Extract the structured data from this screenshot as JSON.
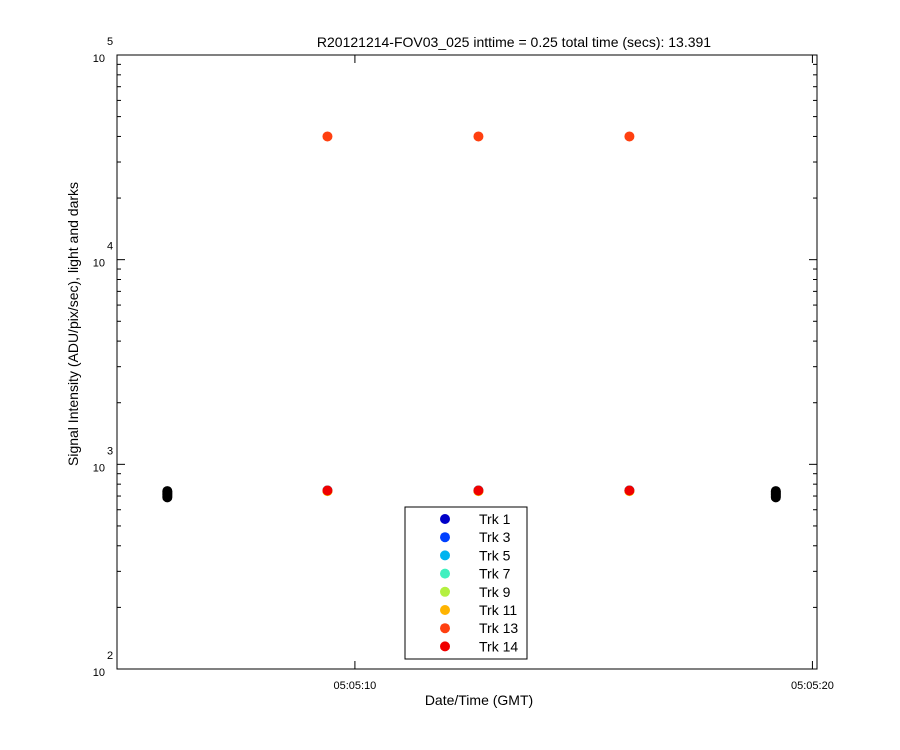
{
  "chart_data": {
    "type": "scatter",
    "title": "R20121214-FOV03_025 inttime = 0.25 total time (secs): 13.391",
    "xlabel": "Date/Time (GMT)",
    "ylabel": "Signal Intensity (ADU/pix/sec), light and darks",
    "yscale": "log",
    "ylim": [
      100,
      100000
    ],
    "xlim": [
      "05:05:04.8",
      "05:05:20.1"
    ],
    "x_ticks": [
      "05:05:10",
      "05:05:20"
    ],
    "y_ticks": [
      {
        "value": 100,
        "base": "10",
        "exp": "2"
      },
      {
        "value": 1000,
        "base": "10",
        "exp": "3"
      },
      {
        "value": 10000,
        "base": "10",
        "exp": "4"
      },
      {
        "value": 100000,
        "base": "10",
        "exp": "5"
      }
    ],
    "grid": false,
    "legend_position": "bottom-center",
    "series": [
      {
        "name": "Trk 1",
        "color": "#0000c8",
        "x": [
          "05:05:09.4",
          "05:05:12.7",
          "05:05:16.0"
        ],
        "y": [
          745,
          745,
          745
        ]
      },
      {
        "name": "Trk 3",
        "color": "#0040ff",
        "x": [
          "05:05:09.4",
          "05:05:12.7",
          "05:05:16.0"
        ],
        "y": [
          745,
          745,
          745
        ]
      },
      {
        "name": "Trk 5",
        "color": "#00b4f0",
        "x": [
          "05:05:09.4",
          "05:05:12.7",
          "05:05:16.0"
        ],
        "y": [
          745,
          745,
          745
        ]
      },
      {
        "name": "Trk 7",
        "color": "#40f0c0",
        "x": [
          "05:05:09.4",
          "05:05:12.7",
          "05:05:16.0"
        ],
        "y": [
          745,
          745,
          745
        ]
      },
      {
        "name": "Trk 9",
        "color": "#b4f040",
        "x": [
          "05:05:09.4",
          "05:05:12.7",
          "05:05:16.0"
        ],
        "y": [
          740,
          740,
          740
        ]
      },
      {
        "name": "Trk 11",
        "color": "#ffb400",
        "x": [
          "05:05:09.4",
          "05:05:12.7",
          "05:05:16.0"
        ],
        "y": [
          740,
          740,
          740
        ]
      },
      {
        "name": "Trk 13",
        "color": "#ff4010",
        "x": [
          "05:05:09.4",
          "05:05:12.7",
          "05:05:16.0"
        ],
        "y": [
          40000,
          40000,
          40000
        ]
      },
      {
        "name": "Trk 14",
        "color": "#f00000",
        "x": [
          "05:05:09.4",
          "05:05:12.7",
          "05:05:16.0"
        ],
        "y": [
          745,
          745,
          745
        ]
      }
    ],
    "darks": {
      "color": "#000000",
      "x": [
        "05:05:05.9",
        "05:05:05.9",
        "05:05:05.9",
        "05:05:05.9",
        "05:05:05.9",
        "05:05:05.9",
        "05:05:19.2",
        "05:05:19.2",
        "05:05:19.2",
        "05:05:19.2",
        "05:05:19.2",
        "05:05:19.2"
      ],
      "y": [
        690,
        700,
        710,
        720,
        730,
        740,
        690,
        700,
        710,
        720,
        730,
        740
      ]
    }
  }
}
